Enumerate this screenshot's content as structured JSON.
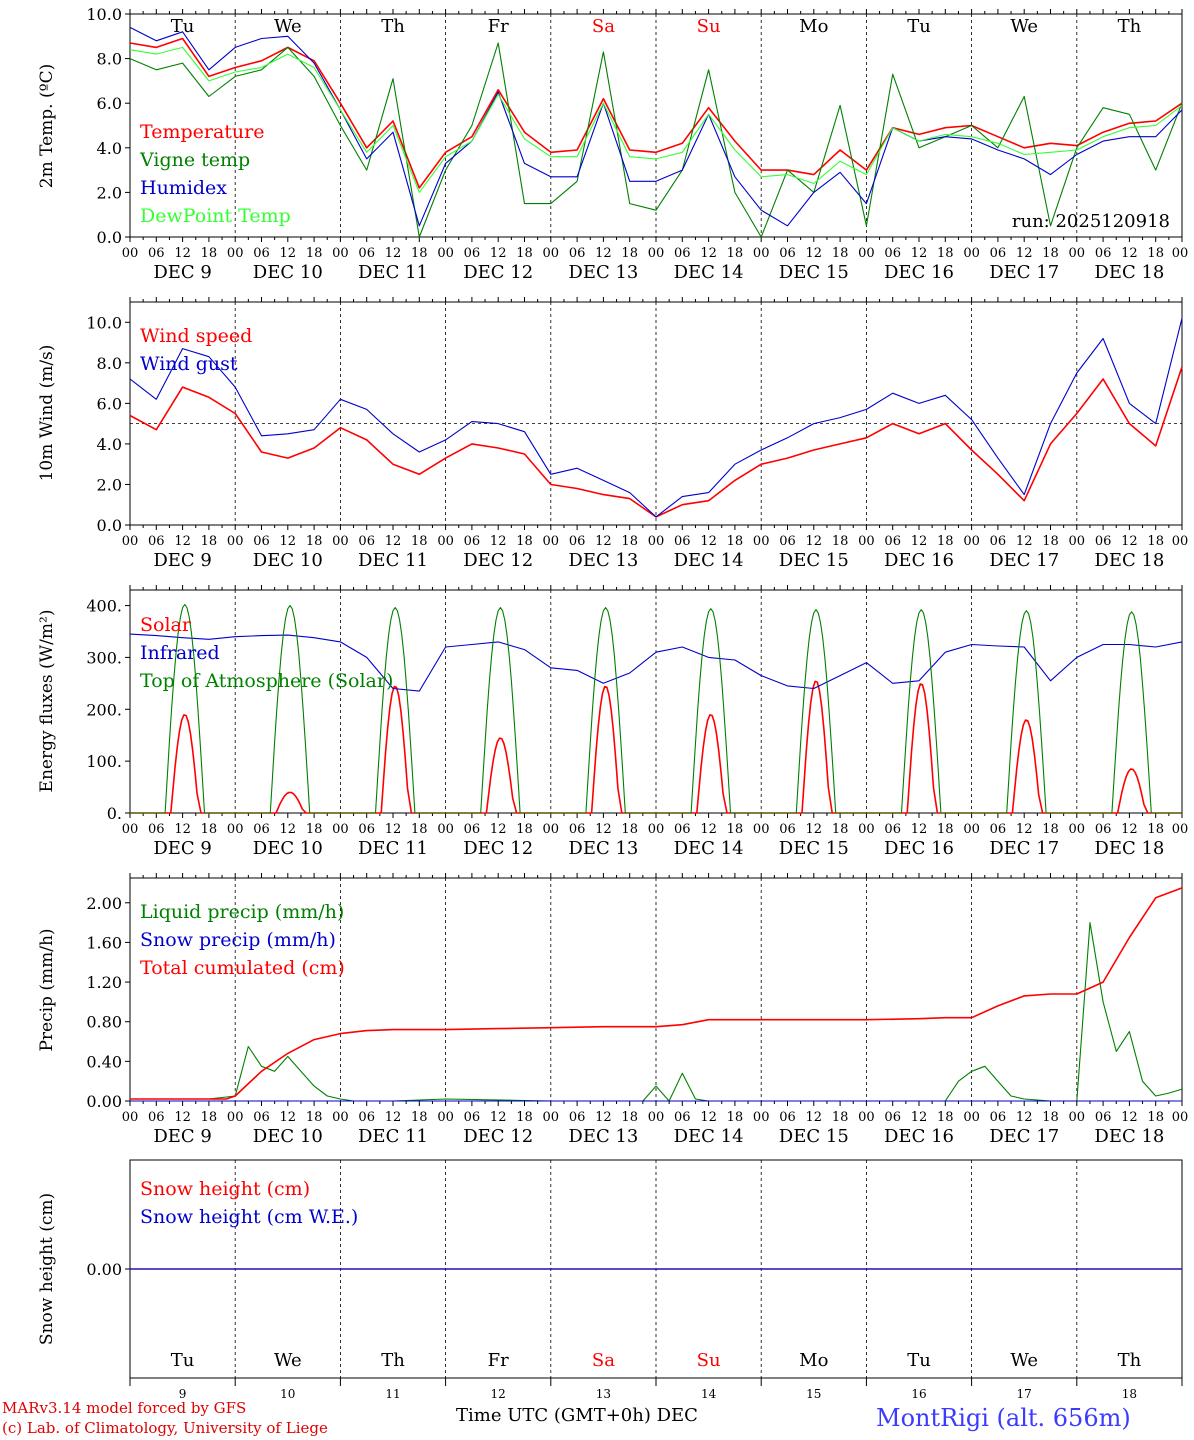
{
  "chart_data": [
    {
      "type": "line",
      "ylabel": "2m Temp. (ºC)",
      "ylim": [
        0,
        10
      ],
      "yticks": [
        "0.0",
        "2.0",
        "4.0",
        "6.0",
        "8.0",
        "10.0"
      ],
      "hour_ticks": [
        "00",
        "06",
        "12",
        "18"
      ],
      "end_hour_tick": "00",
      "date_labels": [
        "DEC  9",
        "DEC 10",
        "DEC 11",
        "DEC 12",
        "DEC 13",
        "DEC 14",
        "DEC 15",
        "DEC 16",
        "DEC 17",
        "DEC 18"
      ],
      "weekday_labels": [
        "Tu",
        "We",
        "Th",
        "Fr",
        "Sa",
        "Su",
        "Mo",
        "Tu",
        "We",
        "Th"
      ],
      "weekday_colors": [
        "#000000",
        "#000000",
        "#000000",
        "#000000",
        "#ff0000",
        "#ff0000",
        "#000000",
        "#000000",
        "#000000",
        "#000000"
      ],
      "annotation": "run: 2025120918",
      "x_hours": [
        0,
        6,
        12,
        18,
        24,
        30,
        36,
        42,
        48,
        54,
        60,
        66,
        72,
        78,
        84,
        90,
        96,
        102,
        108,
        114,
        120,
        126,
        132,
        138,
        144,
        150,
        156,
        162,
        168,
        174,
        180,
        186,
        192,
        198,
        204,
        210,
        216,
        222,
        228,
        234,
        240
      ],
      "series": [
        {
          "name": "Temperature",
          "color": "#ff0000",
          "values": [
            8.7,
            8.5,
            8.9,
            7.2,
            7.6,
            7.9,
            8.5,
            7.9,
            6.0,
            4.0,
            5.2,
            2.2,
            3.8,
            4.5,
            6.6,
            4.7,
            3.8,
            3.9,
            6.2,
            3.9,
            3.8,
            4.2,
            5.8,
            4.3,
            3.0,
            3.0,
            2.8,
            3.9,
            3.0,
            4.9,
            4.6,
            4.9,
            5.0,
            4.5,
            4.0,
            4.2,
            4.1,
            4.7,
            5.1,
            5.2,
            6.0
          ]
        },
        {
          "name": "Vigne temp",
          "color": "#008000",
          "values": [
            8.0,
            7.5,
            7.8,
            6.3,
            7.2,
            7.5,
            8.5,
            7.2,
            5.0,
            3.0,
            7.1,
            -0.5,
            3.0,
            5.0,
            8.7,
            1.5,
            1.5,
            2.5,
            8.3,
            1.5,
            1.2,
            3.0,
            7.5,
            2.0,
            -0.5,
            3.0,
            2.0,
            5.9,
            0.5,
            7.3,
            4.0,
            4.5,
            5.0,
            4.0,
            6.3,
            0.5,
            4.0,
            5.8,
            5.5,
            3.0,
            6.0
          ]
        },
        {
          "name": "Humidex",
          "color": "#0000cc",
          "values": [
            9.4,
            8.8,
            9.2,
            7.5,
            8.5,
            8.9,
            9.0,
            7.8,
            5.7,
            3.5,
            4.7,
            0.5,
            3.3,
            4.3,
            6.5,
            3.3,
            2.7,
            2.7,
            6.0,
            2.5,
            2.5,
            3.0,
            5.5,
            2.7,
            1.2,
            0.5,
            2.0,
            2.9,
            1.5,
            4.9,
            4.3,
            4.5,
            4.4,
            3.9,
            3.5,
            2.8,
            3.7,
            4.3,
            4.5,
            4.5,
            5.7
          ]
        },
        {
          "name": "DewPoint Temp",
          "color": "#33ff33",
          "values": [
            8.4,
            8.2,
            8.5,
            7.0,
            7.4,
            7.6,
            8.2,
            7.6,
            5.7,
            3.8,
            5.0,
            2.0,
            3.6,
            4.3,
            6.4,
            4.4,
            3.6,
            3.6,
            6.0,
            3.6,
            3.5,
            3.8,
            5.5,
            3.9,
            2.7,
            2.8,
            2.4,
            3.4,
            2.8,
            4.9,
            4.3,
            4.6,
            4.5,
            4.2,
            3.7,
            3.8,
            3.9,
            4.5,
            4.9,
            5.0,
            5.9
          ]
        }
      ]
    },
    {
      "type": "line",
      "ylabel": "10m Wind (m/s)",
      "ylim": [
        0,
        11
      ],
      "yticks": [
        "0.0",
        "2.0",
        "4.0",
        "6.0",
        "8.0",
        "10.0"
      ],
      "reference_line": 5,
      "hour_ticks": [
        "00",
        "06",
        "12",
        "18"
      ],
      "end_hour_tick": "00",
      "date_labels": [
        "DEC  9",
        "DEC 10",
        "DEC 11",
        "DEC 12",
        "DEC 13",
        "DEC 14",
        "DEC 15",
        "DEC 16",
        "DEC 17",
        "DEC 18"
      ],
      "x_hours": [
        0,
        6,
        12,
        18,
        24,
        30,
        36,
        42,
        48,
        54,
        60,
        66,
        72,
        78,
        84,
        90,
        96,
        102,
        108,
        114,
        120,
        126,
        132,
        138,
        144,
        150,
        156,
        162,
        168,
        174,
        180,
        186,
        192,
        198,
        204,
        210,
        216,
        222,
        228,
        234,
        240
      ],
      "series": [
        {
          "name": "Wind speed",
          "color": "#ff0000",
          "values": [
            5.4,
            4.7,
            6.8,
            6.3,
            5.5,
            3.6,
            3.3,
            3.8,
            4.8,
            4.2,
            3.0,
            2.5,
            3.3,
            4.0,
            3.8,
            3.5,
            2.0,
            1.8,
            1.5,
            1.3,
            0.4,
            1.0,
            1.2,
            2.2,
            3.0,
            3.3,
            3.7,
            4.0,
            4.3,
            5.0,
            4.5,
            5.0,
            3.7,
            2.5,
            1.2,
            4.0,
            5.5,
            7.2,
            5.0,
            3.9,
            7.8
          ]
        },
        {
          "name": "Wind gust",
          "color": "#0000cc",
          "values": [
            7.2,
            6.2,
            8.7,
            8.3,
            6.8,
            4.4,
            4.5,
            4.7,
            6.2,
            5.7,
            4.5,
            3.6,
            4.2,
            5.1,
            5.0,
            4.6,
            2.5,
            2.8,
            2.2,
            1.6,
            0.4,
            1.4,
            1.6,
            3.0,
            3.7,
            4.3,
            5.0,
            5.3,
            5.7,
            6.5,
            6.0,
            6.4,
            5.2,
            3.3,
            1.5,
            5.0,
            7.5,
            9.2,
            6.0,
            5.0,
            10.2
          ]
        }
      ]
    },
    {
      "type": "line",
      "ylabel": "Energy fluxes (W/m²)",
      "ylim": [
        0,
        430
      ],
      "yticks": [
        "0.",
        "100.",
        "200.",
        "300.",
        "400."
      ],
      "hour_ticks": [
        "00",
        "06",
        "12",
        "18"
      ],
      "end_hour_tick": "00",
      "date_labels": [
        "DEC  9",
        "DEC 10",
        "DEC 11",
        "DEC 12",
        "DEC 13",
        "DEC 14",
        "DEC 15",
        "DEC 16",
        "DEC 17",
        "DEC 18"
      ],
      "series": [
        {
          "name": "Solar",
          "color": "#ff0000",
          "daily_peak_wm2": [
            190,
            40,
            245,
            145,
            245,
            190,
            255,
            250,
            180,
            85
          ]
        },
        {
          "name": "Infrared",
          "color": "#0000cc",
          "x_hours": [
            0,
            6,
            12,
            18,
            24,
            30,
            36,
            42,
            48,
            54,
            60,
            66,
            72,
            78,
            84,
            90,
            96,
            102,
            108,
            114,
            120,
            126,
            132,
            138,
            144,
            150,
            156,
            162,
            168,
            174,
            180,
            186,
            192,
            198,
            204,
            210,
            216,
            222,
            228,
            234,
            240
          ],
          "values": [
            345,
            342,
            338,
            335,
            340,
            342,
            343,
            338,
            330,
            300,
            240,
            235,
            320,
            325,
            330,
            315,
            280,
            275,
            250,
            270,
            310,
            320,
            300,
            295,
            265,
            245,
            240,
            265,
            290,
            250,
            255,
            310,
            325,
            322,
            320,
            255,
            300,
            325,
            325,
            320,
            330
          ]
        },
        {
          "name": "Top of Atmosphere (Solar)",
          "color": "#008000",
          "daily_peak_wm2": [
            402,
            400,
            396,
            396,
            396,
            394,
            392,
            392,
            390,
            388
          ]
        }
      ]
    },
    {
      "type": "line",
      "ylabel": "Precip (mm/h)",
      "ylim": [
        0,
        2.25
      ],
      "yticks": [
        "0.00",
        "0.40",
        "0.80",
        "1.20",
        "1.60",
        "2.00"
      ],
      "hour_ticks": [
        "00",
        "06",
        "12",
        "18"
      ],
      "end_hour_tick": "00",
      "date_labels": [
        "DEC  9",
        "DEC 10",
        "DEC 11",
        "DEC 12",
        "DEC 13",
        "DEC 14",
        "DEC 15",
        "DEC 16",
        "DEC 17",
        "DEC 18"
      ],
      "series": [
        {
          "name": "Liquid precip (mm/h)",
          "color": "#008000",
          "x_hours": [
            0,
            6,
            12,
            18,
            24,
            27,
            30,
            33,
            36,
            39,
            42,
            45,
            48,
            51,
            54,
            60,
            72,
            96,
            117,
            120,
            123,
            126,
            129,
            132,
            144,
            168,
            186,
            189,
            192,
            195,
            198,
            201,
            204,
            210,
            216,
            219,
            222,
            225,
            228,
            231,
            234,
            237,
            240
          ],
          "values": [
            0.02,
            0.02,
            0.02,
            0.02,
            0.05,
            0.55,
            0.35,
            0.3,
            0.45,
            0.3,
            0.15,
            0.05,
            0.02,
            0.0,
            0.0,
            0.0,
            0.02,
            0.0,
            0.0,
            0.15,
            0.0,
            0.28,
            0.02,
            0.0,
            0.0,
            0.0,
            0.0,
            0.2,
            0.3,
            0.35,
            0.2,
            0.05,
            0.02,
            0.0,
            0.0,
            1.8,
            1.0,
            0.5,
            0.7,
            0.2,
            0.05,
            0.08,
            0.12
          ]
        },
        {
          "name": "Snow precip (mm/h)",
          "color": "#0000cc",
          "x_hours": [
            0,
            240
          ],
          "values": [
            0.0,
            0.0
          ]
        },
        {
          "name": "Total cumulated (cm)",
          "color": "#ff0000",
          "x_hours": [
            0,
            12,
            22,
            24,
            30,
            36,
            42,
            48,
            54,
            60,
            72,
            84,
            96,
            108,
            120,
            126,
            132,
            144,
            156,
            168,
            180,
            186,
            192,
            198,
            204,
            210,
            216,
            222,
            228,
            234,
            240
          ],
          "values": [
            0.02,
            0.02,
            0.02,
            0.05,
            0.3,
            0.48,
            0.62,
            0.68,
            0.71,
            0.72,
            0.72,
            0.73,
            0.74,
            0.75,
            0.75,
            0.77,
            0.82,
            0.82,
            0.82,
            0.82,
            0.83,
            0.84,
            0.84,
            0.96,
            1.06,
            1.08,
            1.08,
            1.2,
            1.65,
            2.05,
            2.15
          ]
        }
      ]
    },
    {
      "type": "line",
      "ylabel": "Snow height (cm)",
      "yticks": [
        "0.00"
      ],
      "series": [
        {
          "name": "Snow height (cm)",
          "color": "#ff0000",
          "x_hours": [
            0,
            240
          ],
          "values": [
            0.0,
            0.0
          ]
        },
        {
          "name": "Snow height (cm W.E.)",
          "color": "#0000cc",
          "x_hours": [
            0,
            240
          ],
          "values": [
            0.0,
            0.0
          ]
        }
      ],
      "weekday_labels": [
        "Tu",
        "We",
        "Th",
        "Fr",
        "Sa",
        "Su",
        "Mo",
        "Tu",
        "We",
        "Th"
      ],
      "weekday_colors": [
        "#000000",
        "#000000",
        "#000000",
        "#000000",
        "#ff0000",
        "#ff0000",
        "#000000",
        "#000000",
        "#000000",
        "#000000"
      ],
      "day_numbers": [
        "9",
        "10",
        "11",
        "12",
        "13",
        "14",
        "15",
        "16",
        "17",
        "18"
      ]
    }
  ],
  "footer": {
    "credit_line1": "MARv3.14 model forced by GFS",
    "credit_line2": "(c) Lab. of Climatology, University of Liege",
    "xlabel": "Time UTC (GMT+0h) DEC",
    "station": "MontRigi (alt. 656m)"
  }
}
